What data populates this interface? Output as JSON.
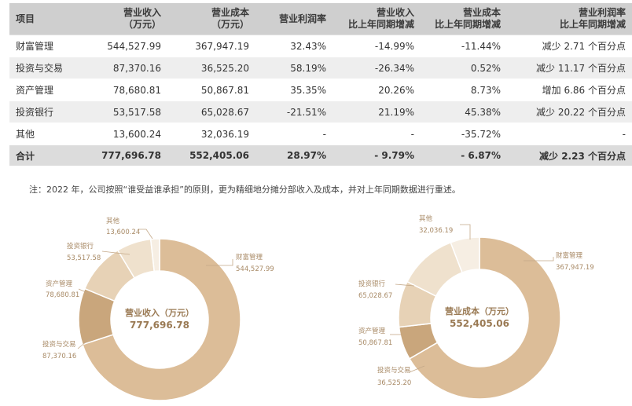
{
  "table": {
    "headers": [
      {
        "line1": "项目",
        "line2": ""
      },
      {
        "line1": "营业收入",
        "line2": "（万元）"
      },
      {
        "line1": "营业成本",
        "line2": "（万元）"
      },
      {
        "line1": "营业利润率",
        "line2": ""
      },
      {
        "line1": "营业收入",
        "line2": "比上年同期增减"
      },
      {
        "line1": "营业成本",
        "line2": "比上年同期增减"
      },
      {
        "line1": "营业利润率",
        "line2": "比上年同期增减"
      }
    ],
    "rows": [
      [
        "财富管理",
        "544,527.99",
        "367,947.19",
        "32.43%",
        "-14.99%",
        "-11.44%",
        "减少 2.71 个百分点"
      ],
      [
        "投资与交易",
        "87,370.16",
        "36,525.20",
        "58.19%",
        "-26.34%",
        "0.52%",
        "减少 11.17 个百分点"
      ],
      [
        "资产管理",
        "78,680.81",
        "50,867.81",
        "35.35%",
        "20.26%",
        "8.73%",
        "增加 6.86 个百分点"
      ],
      [
        "投资银行",
        "53,517.58",
        "65,028.67",
        "-21.51%",
        "21.19%",
        "45.38%",
        "减少 20.22 个百分点"
      ],
      [
        "其他",
        "13,600.24",
        "32,036.19",
        "-",
        "-",
        "-35.72%",
        "-"
      ]
    ],
    "total": [
      "合计",
      "777,696.78",
      "552,405.06",
      "28.97%",
      "- 9.79%",
      "- 6.87%",
      "减少 2.23 个百分点"
    ]
  },
  "note": "注：2022 年，公司按照“谁受益谁承担”的原则，更为精细地分摊分部收入及成本，并对上年同期数据进行重述。",
  "chart_data": [
    {
      "type": "pie",
      "variant": "donut",
      "title": "营业收入（万元）",
      "total_label": "777,696.78",
      "categories": [
        "财富管理",
        "投资与交易",
        "资产管理",
        "投资银行",
        "其他"
      ],
      "values": [
        544527.99,
        87370.16,
        78680.81,
        53517.58,
        13600.24
      ],
      "value_labels": [
        "544,527.99",
        "87,370.16",
        "78,680.81",
        "53,517.58",
        "13,600.24"
      ],
      "colors": [
        "#dcbd98",
        "#c9a67c",
        "#e7d2b6",
        "#efe1cd",
        "#f6eee3"
      ]
    },
    {
      "type": "pie",
      "variant": "donut",
      "title": "营业成本（万元）",
      "total_label": "552,405.06",
      "categories": [
        "财富管理",
        "投资与交易",
        "资产管理",
        "投资银行",
        "其他"
      ],
      "values": [
        367947.19,
        36525.2,
        50867.81,
        65028.67,
        32036.19
      ],
      "value_labels": [
        "367,947.19",
        "36,525.20",
        "50,867.81",
        "65,028.67",
        "32,036.19"
      ],
      "colors": [
        "#dcbd98",
        "#c9a67c",
        "#e7d2b6",
        "#efe1cd",
        "#f6eee3"
      ]
    }
  ]
}
